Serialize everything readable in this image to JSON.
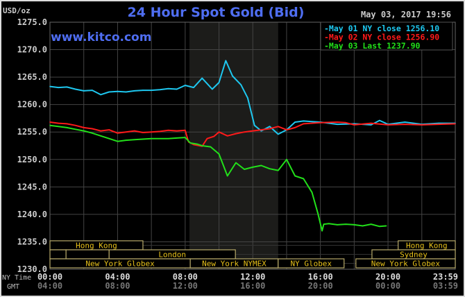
{
  "chart_data": {
    "type": "line",
    "title": "24 Hour Spot Gold (Bid)",
    "watermark": "www.kitco.com",
    "timestamp": "May 03, 2017 19:56",
    "ylabel": "USD/oz",
    "ylim": [
      1230,
      1275
    ],
    "yticks": [
      "1275.0",
      "1270.0",
      "1265.0",
      "1260.0",
      "1255.0",
      "1250.0",
      "1245.0",
      "1240.0",
      "1235.0",
      "1230.0"
    ],
    "xlim_hours": [
      0,
      23.98
    ],
    "x_row_labels": {
      "ny": "NY Time",
      "gmt": "GMT"
    },
    "xticks": [
      {
        "h": 0,
        "ny": "00:00",
        "gmt": "04:00"
      },
      {
        "h": 4,
        "ny": "04:00",
        "gmt": "08:00"
      },
      {
        "h": 8,
        "ny": "08:00",
        "gmt": "12:00"
      },
      {
        "h": 12,
        "ny": "12:00",
        "gmt": "16:00"
      },
      {
        "h": 16,
        "ny": "16:00",
        "gmt": "20:00"
      },
      {
        "h": 20,
        "ny": "20:00",
        "gmt": "00:00"
      },
      {
        "h": 23.98,
        "ny": "23:59",
        "gmt": "03:59"
      }
    ],
    "grid": true,
    "legend_placement": "top-right",
    "shaded_session_hours": [
      8.25,
      13.5
    ],
    "series": [
      {
        "name": "May 01 NY close 1256.10",
        "color": "#1ec8f0",
        "x": [
          0,
          0.5,
          1,
          1.5,
          2,
          2.5,
          3,
          3.5,
          4,
          4.5,
          5,
          5.5,
          6,
          6.5,
          7,
          7.5,
          8,
          8.5,
          9,
          9.3,
          9.6,
          10,
          10.4,
          10.8,
          11.3,
          11.7,
          12.1,
          12.5,
          13,
          13.5,
          14,
          14.5,
          15,
          15.5,
          16,
          17,
          18,
          19,
          19.5,
          20,
          21,
          22,
          23,
          23.98
        ],
        "y": [
          1263.3,
          1263.1,
          1263.2,
          1262.8,
          1262.5,
          1262.6,
          1261.8,
          1262.3,
          1262.4,
          1262.3,
          1262.5,
          1262.6,
          1262.6,
          1262.7,
          1262.9,
          1262.8,
          1263.5,
          1263.1,
          1264.8,
          1263.8,
          1262.8,
          1264.0,
          1268.0,
          1265.2,
          1263.6,
          1261.2,
          1256.2,
          1255.2,
          1256.0,
          1254.6,
          1255.4,
          1256.8,
          1257.0,
          1256.9,
          1256.8,
          1256.4,
          1256.5,
          1256.3,
          1257.1,
          1256.4,
          1256.8,
          1256.4,
          1256.6,
          1256.6
        ]
      },
      {
        "name": "May 02 NY close 1256.90",
        "color": "#ff1a1a",
        "x": [
          0,
          0.5,
          1,
          1.5,
          2,
          2.5,
          3,
          3.5,
          4,
          4.5,
          5,
          5.5,
          6,
          6.5,
          7,
          7.5,
          8,
          8.2,
          8.5,
          9,
          9.3,
          9.7,
          10,
          10.5,
          11,
          11.5,
          12,
          12.5,
          13,
          13.5,
          14,
          14.5,
          15,
          16,
          17,
          17.5,
          18,
          19,
          20,
          21,
          22,
          23,
          23.98
        ],
        "y": [
          1256.8,
          1256.6,
          1256.5,
          1256.2,
          1255.8,
          1255.6,
          1255.2,
          1255.4,
          1254.8,
          1255.0,
          1255.2,
          1254.9,
          1255.0,
          1255.1,
          1255.3,
          1255.2,
          1255.3,
          1253.2,
          1252.7,
          1252.4,
          1253.8,
          1254.2,
          1255.0,
          1254.3,
          1254.7,
          1255.0,
          1255.2,
          1255.4,
          1255.6,
          1256.0,
          1255.4,
          1255.8,
          1256.5,
          1256.7,
          1256.8,
          1256.7,
          1256.3,
          1256.6,
          1256.3,
          1256.4,
          1256.3,
          1256.4,
          1256.5
        ]
      },
      {
        "name": "May 03 Last 1237.90",
        "color": "#22e01a",
        "x": [
          0,
          0.5,
          1,
          1.5,
          2,
          2.5,
          3,
          3.5,
          4,
          4.5,
          5,
          5.5,
          6,
          6.5,
          7,
          7.5,
          8,
          8.3,
          8.7,
          9,
          9.5,
          10,
          10.5,
          11,
          11.5,
          12,
          12.5,
          13,
          13.5,
          14,
          14.5,
          15,
          15.5,
          15.85,
          16.1,
          16.2,
          16.5,
          17,
          17.5,
          18,
          18.5,
          19,
          19.5,
          19.9
        ],
        "y": [
          1256.2,
          1256.0,
          1255.8,
          1255.5,
          1255.2,
          1254.8,
          1254.3,
          1253.8,
          1253.3,
          1253.5,
          1253.6,
          1253.7,
          1253.8,
          1253.8,
          1253.8,
          1253.9,
          1254.0,
          1253.0,
          1252.8,
          1252.5,
          1252.3,
          1251.0,
          1247.0,
          1249.4,
          1248.2,
          1248.6,
          1248.9,
          1248.3,
          1248.0,
          1250.0,
          1247.0,
          1246.5,
          1244.0,
          1240.2,
          1237.0,
          1238.2,
          1238.3,
          1238.1,
          1238.2,
          1238.1,
          1237.9,
          1238.2,
          1237.8,
          1237.9
        ]
      }
    ],
    "sessions": [
      {
        "label": "Hong Kong",
        "row": 0,
        "start": 0,
        "end": 5.5
      },
      {
        "label": "Hong Kong",
        "row": 0,
        "start": 20.6,
        "end": 23.98
      },
      {
        "label": "",
        "row": 1,
        "start": 0,
        "end": 0.95
      },
      {
        "label": "",
        "row": 1,
        "start": 0.95,
        "end": 3.5
      },
      {
        "label": "London",
        "row": 1,
        "start": 3.5,
        "end": 10.97
      },
      {
        "label": "Sydney",
        "row": 1,
        "start": 19.05,
        "end": 23.98
      },
      {
        "label": "New York Globex",
        "row": 2,
        "start": 0,
        "end": 8.3
      },
      {
        "label": "New York NYMEX",
        "row": 2,
        "start": 8.3,
        "end": 13.5
      },
      {
        "label": "NY Globex",
        "row": 2,
        "start": 13.5,
        "end": 17.4
      },
      {
        "label": "New York Globex",
        "row": 2,
        "start": 18.1,
        "end": 23.98
      }
    ]
  }
}
